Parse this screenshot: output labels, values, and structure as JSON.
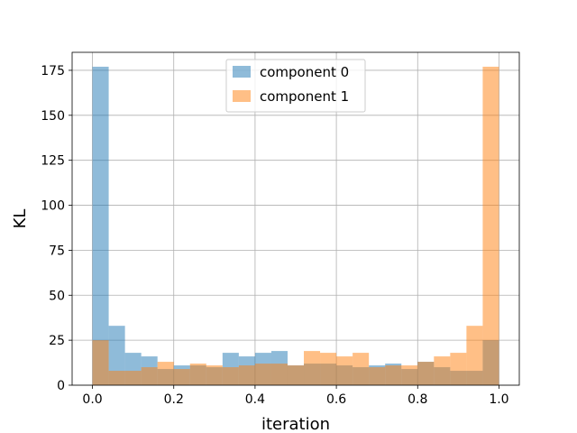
{
  "chart_data": {
    "type": "bar",
    "title": "",
    "xlabel": "iteration",
    "ylabel": "KL",
    "xlim": [
      -0.05,
      1.05
    ],
    "ylim": [
      0,
      185
    ],
    "xticks": [
      0.0,
      0.2,
      0.4,
      0.6,
      0.8,
      1.0
    ],
    "xtick_labels": [
      "0.0",
      "0.2",
      "0.4",
      "0.6",
      "0.8",
      "1.0"
    ],
    "yticks": [
      0,
      25,
      50,
      75,
      100,
      125,
      150,
      175
    ],
    "ytick_labels": [
      "0",
      "25",
      "50",
      "75",
      "100",
      "125",
      "150",
      "175"
    ],
    "grid": true,
    "legend_position": "top-center",
    "bin_edges": [
      0.0,
      0.04,
      0.08,
      0.12,
      0.16,
      0.2,
      0.24,
      0.28,
      0.32,
      0.36,
      0.4,
      0.44,
      0.48,
      0.52,
      0.56,
      0.6,
      0.64,
      0.68,
      0.72,
      0.76,
      0.8,
      0.84,
      0.88,
      0.92,
      0.96,
      1.0
    ],
    "series": [
      {
        "name": "component 0",
        "color": "#1f77b4",
        "values": [
          177,
          33,
          18,
          16,
          9,
          11,
          11,
          10,
          18,
          16,
          18,
          19,
          11,
          12,
          12,
          11,
          10,
          11,
          12,
          9,
          13,
          10,
          8,
          8,
          25
        ]
      },
      {
        "name": "component 1",
        "color": "#ff7f0e",
        "values": [
          25,
          8,
          8,
          10,
          13,
          9,
          12,
          11,
          10,
          11,
          12,
          12,
          11,
          19,
          18,
          16,
          18,
          10,
          11,
          11,
          13,
          16,
          18,
          33,
          177
        ]
      }
    ]
  }
}
